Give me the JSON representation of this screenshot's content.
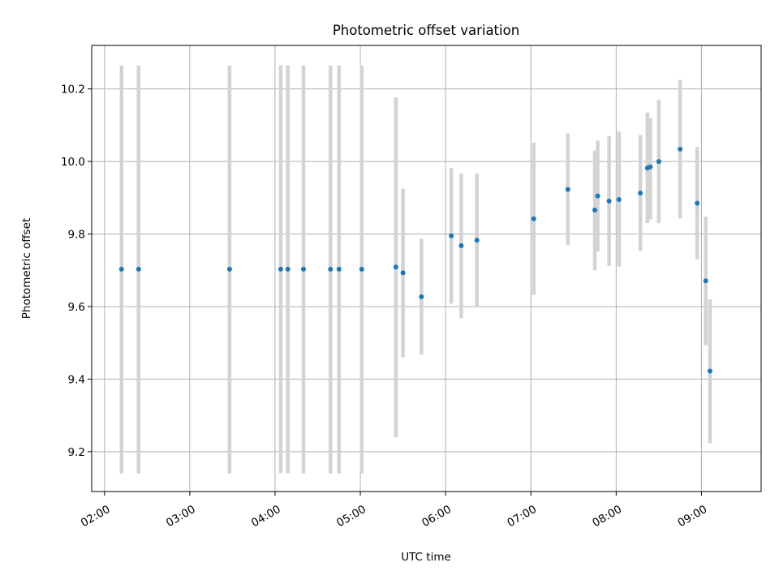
{
  "chart_data": {
    "type": "scatter",
    "title": "Photometric offset variation",
    "xlabel": "UTC time",
    "ylabel": "Photometric offset",
    "xlim": [
      "01:51",
      "09:42"
    ],
    "ylim": [
      9.09,
      10.32
    ],
    "grid": true,
    "x_ticks": [
      "02:00",
      "03:00",
      "04:00",
      "05:00",
      "06:00",
      "07:00",
      "08:00",
      "09:00"
    ],
    "y_ticks": [
      9.2,
      9.4,
      9.6,
      9.8,
      10.0,
      10.2
    ],
    "point_color": "#1f77b4",
    "errorbar_color": "#d3d3d3",
    "points": [
      {
        "t": "02:12",
        "y": 9.703,
        "lo": 9.14,
        "hi": 10.265
      },
      {
        "t": "02:24",
        "y": 9.703,
        "lo": 9.14,
        "hi": 10.265
      },
      {
        "t": "03:28",
        "y": 9.703,
        "lo": 9.14,
        "hi": 10.265
      },
      {
        "t": "04:04",
        "y": 9.703,
        "lo": 9.14,
        "hi": 10.265
      },
      {
        "t": "04:09",
        "y": 9.703,
        "lo": 9.14,
        "hi": 10.265
      },
      {
        "t": "04:20",
        "y": 9.703,
        "lo": 9.14,
        "hi": 10.265
      },
      {
        "t": "04:39",
        "y": 9.703,
        "lo": 9.14,
        "hi": 10.265
      },
      {
        "t": "04:45",
        "y": 9.703,
        "lo": 9.14,
        "hi": 10.265
      },
      {
        "t": "05:01",
        "y": 9.703,
        "lo": 9.14,
        "hi": 10.265
      },
      {
        "t": "05:25",
        "y": 9.709,
        "lo": 9.24,
        "hi": 10.177
      },
      {
        "t": "05:30",
        "y": 9.693,
        "lo": 9.46,
        "hi": 9.925
      },
      {
        "t": "05:43",
        "y": 9.627,
        "lo": 9.467,
        "hi": 9.787
      },
      {
        "t": "06:04",
        "y": 9.795,
        "lo": 9.608,
        "hi": 9.982
      },
      {
        "t": "06:11",
        "y": 9.768,
        "lo": 9.568,
        "hi": 9.967
      },
      {
        "t": "06:22",
        "y": 9.783,
        "lo": 9.6,
        "hi": 9.967
      },
      {
        "t": "07:02",
        "y": 9.842,
        "lo": 9.632,
        "hi": 10.052
      },
      {
        "t": "07:26",
        "y": 9.923,
        "lo": 9.77,
        "hi": 10.077
      },
      {
        "t": "07:45",
        "y": 9.866,
        "lo": 9.7,
        "hi": 10.03
      },
      {
        "t": "07:47",
        "y": 9.905,
        "lo": 9.752,
        "hi": 10.058
      },
      {
        "t": "07:55",
        "y": 9.891,
        "lo": 9.712,
        "hi": 10.07
      },
      {
        "t": "08:02",
        "y": 9.895,
        "lo": 9.71,
        "hi": 10.082
      },
      {
        "t": "08:17",
        "y": 9.913,
        "lo": 9.753,
        "hi": 10.073
      },
      {
        "t": "08:22",
        "y": 9.982,
        "lo": 9.83,
        "hi": 10.135
      },
      {
        "t": "08:24",
        "y": 9.985,
        "lo": 9.84,
        "hi": 10.12
      },
      {
        "t": "08:30",
        "y": 10.0,
        "lo": 9.83,
        "hi": 10.17
      },
      {
        "t": "08:45",
        "y": 10.034,
        "lo": 9.843,
        "hi": 10.225
      },
      {
        "t": "08:57",
        "y": 9.885,
        "lo": 9.73,
        "hi": 10.04
      },
      {
        "t": "09:03",
        "y": 9.671,
        "lo": 9.493,
        "hi": 9.848
      },
      {
        "t": "09:06",
        "y": 9.422,
        "lo": 9.223,
        "hi": 9.62
      }
    ]
  }
}
